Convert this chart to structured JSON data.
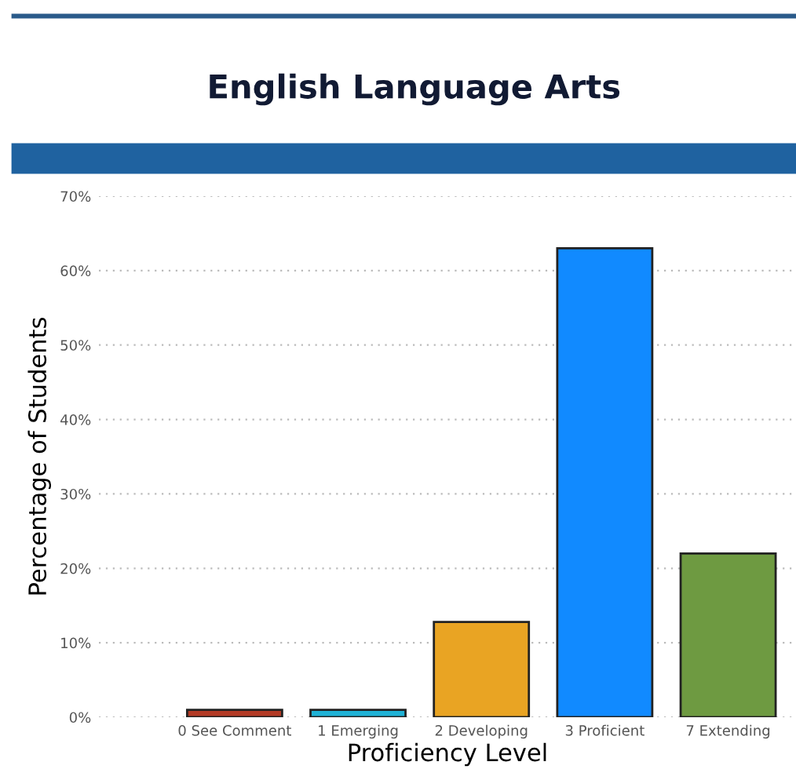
{
  "chart_data": {
    "type": "bar",
    "title": "English Language Arts",
    "xlabel": "Proficiency Level",
    "ylabel": "Percentage of Students",
    "categories": [
      "0 See Comment",
      "1 Emerging",
      "2 Developing",
      "3 Proficient",
      "7 Extending"
    ],
    "values": [
      1,
      1,
      12.8,
      63,
      22
    ],
    "colors": [
      "#b33a25",
      "#1fb2d6",
      "#e9a423",
      "#118aff",
      "#6e9a41"
    ],
    "ylim": [
      0,
      70
    ],
    "yticks": [
      {
        "value": 0,
        "label": "0%"
      },
      {
        "value": 10,
        "label": "10%"
      },
      {
        "value": 20,
        "label": "20%"
      },
      {
        "value": 30,
        "label": "30%"
      },
      {
        "value": 40,
        "label": "40%"
      },
      {
        "value": 50,
        "label": "50%"
      },
      {
        "value": 60,
        "label": "60%"
      },
      {
        "value": 70,
        "label": "70%"
      }
    ],
    "grid": "y"
  }
}
